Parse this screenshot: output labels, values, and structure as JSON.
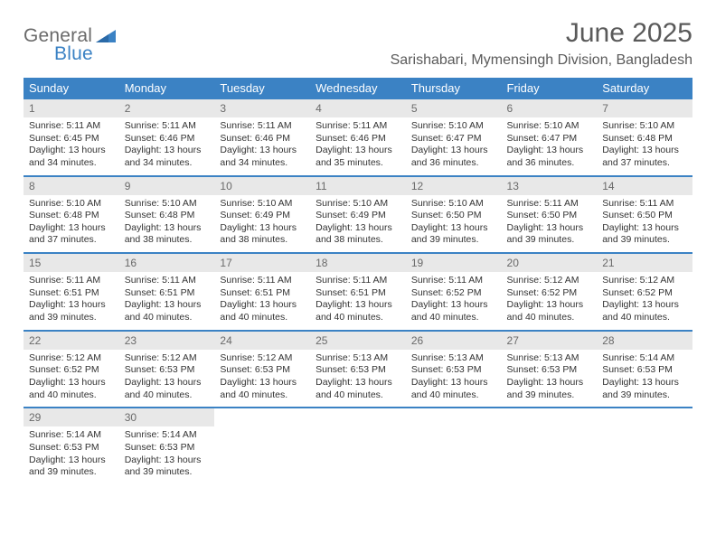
{
  "logo": {
    "word1": "General",
    "word2": "Blue"
  },
  "title": "June 2025",
  "location": "Sarishabari, Mymensingh Division, Bangladesh",
  "colors": {
    "header_bg": "#3b82c4",
    "daynum_bg": "#e8e8e8",
    "text": "#333333",
    "title_text": "#5a5a5a",
    "border": "#3b82c4",
    "background": "#ffffff"
  },
  "weekdays": [
    "Sunday",
    "Monday",
    "Tuesday",
    "Wednesday",
    "Thursday",
    "Friday",
    "Saturday"
  ],
  "weeks": [
    [
      {
        "n": "1",
        "sr": "Sunrise: 5:11 AM",
        "ss": "Sunset: 6:45 PM",
        "d1": "Daylight: 13 hours",
        "d2": "and 34 minutes."
      },
      {
        "n": "2",
        "sr": "Sunrise: 5:11 AM",
        "ss": "Sunset: 6:46 PM",
        "d1": "Daylight: 13 hours",
        "d2": "and 34 minutes."
      },
      {
        "n": "3",
        "sr": "Sunrise: 5:11 AM",
        "ss": "Sunset: 6:46 PM",
        "d1": "Daylight: 13 hours",
        "d2": "and 34 minutes."
      },
      {
        "n": "4",
        "sr": "Sunrise: 5:11 AM",
        "ss": "Sunset: 6:46 PM",
        "d1": "Daylight: 13 hours",
        "d2": "and 35 minutes."
      },
      {
        "n": "5",
        "sr": "Sunrise: 5:10 AM",
        "ss": "Sunset: 6:47 PM",
        "d1": "Daylight: 13 hours",
        "d2": "and 36 minutes."
      },
      {
        "n": "6",
        "sr": "Sunrise: 5:10 AM",
        "ss": "Sunset: 6:47 PM",
        "d1": "Daylight: 13 hours",
        "d2": "and 36 minutes."
      },
      {
        "n": "7",
        "sr": "Sunrise: 5:10 AM",
        "ss": "Sunset: 6:48 PM",
        "d1": "Daylight: 13 hours",
        "d2": "and 37 minutes."
      }
    ],
    [
      {
        "n": "8",
        "sr": "Sunrise: 5:10 AM",
        "ss": "Sunset: 6:48 PM",
        "d1": "Daylight: 13 hours",
        "d2": "and 37 minutes."
      },
      {
        "n": "9",
        "sr": "Sunrise: 5:10 AM",
        "ss": "Sunset: 6:48 PM",
        "d1": "Daylight: 13 hours",
        "d2": "and 38 minutes."
      },
      {
        "n": "10",
        "sr": "Sunrise: 5:10 AM",
        "ss": "Sunset: 6:49 PM",
        "d1": "Daylight: 13 hours",
        "d2": "and 38 minutes."
      },
      {
        "n": "11",
        "sr": "Sunrise: 5:10 AM",
        "ss": "Sunset: 6:49 PM",
        "d1": "Daylight: 13 hours",
        "d2": "and 38 minutes."
      },
      {
        "n": "12",
        "sr": "Sunrise: 5:10 AM",
        "ss": "Sunset: 6:50 PM",
        "d1": "Daylight: 13 hours",
        "d2": "and 39 minutes."
      },
      {
        "n": "13",
        "sr": "Sunrise: 5:11 AM",
        "ss": "Sunset: 6:50 PM",
        "d1": "Daylight: 13 hours",
        "d2": "and 39 minutes."
      },
      {
        "n": "14",
        "sr": "Sunrise: 5:11 AM",
        "ss": "Sunset: 6:50 PM",
        "d1": "Daylight: 13 hours",
        "d2": "and 39 minutes."
      }
    ],
    [
      {
        "n": "15",
        "sr": "Sunrise: 5:11 AM",
        "ss": "Sunset: 6:51 PM",
        "d1": "Daylight: 13 hours",
        "d2": "and 39 minutes."
      },
      {
        "n": "16",
        "sr": "Sunrise: 5:11 AM",
        "ss": "Sunset: 6:51 PM",
        "d1": "Daylight: 13 hours",
        "d2": "and 40 minutes."
      },
      {
        "n": "17",
        "sr": "Sunrise: 5:11 AM",
        "ss": "Sunset: 6:51 PM",
        "d1": "Daylight: 13 hours",
        "d2": "and 40 minutes."
      },
      {
        "n": "18",
        "sr": "Sunrise: 5:11 AM",
        "ss": "Sunset: 6:51 PM",
        "d1": "Daylight: 13 hours",
        "d2": "and 40 minutes."
      },
      {
        "n": "19",
        "sr": "Sunrise: 5:11 AM",
        "ss": "Sunset: 6:52 PM",
        "d1": "Daylight: 13 hours",
        "d2": "and 40 minutes."
      },
      {
        "n": "20",
        "sr": "Sunrise: 5:12 AM",
        "ss": "Sunset: 6:52 PM",
        "d1": "Daylight: 13 hours",
        "d2": "and 40 minutes."
      },
      {
        "n": "21",
        "sr": "Sunrise: 5:12 AM",
        "ss": "Sunset: 6:52 PM",
        "d1": "Daylight: 13 hours",
        "d2": "and 40 minutes."
      }
    ],
    [
      {
        "n": "22",
        "sr": "Sunrise: 5:12 AM",
        "ss": "Sunset: 6:52 PM",
        "d1": "Daylight: 13 hours",
        "d2": "and 40 minutes."
      },
      {
        "n": "23",
        "sr": "Sunrise: 5:12 AM",
        "ss": "Sunset: 6:53 PM",
        "d1": "Daylight: 13 hours",
        "d2": "and 40 minutes."
      },
      {
        "n": "24",
        "sr": "Sunrise: 5:12 AM",
        "ss": "Sunset: 6:53 PM",
        "d1": "Daylight: 13 hours",
        "d2": "and 40 minutes."
      },
      {
        "n": "25",
        "sr": "Sunrise: 5:13 AM",
        "ss": "Sunset: 6:53 PM",
        "d1": "Daylight: 13 hours",
        "d2": "and 40 minutes."
      },
      {
        "n": "26",
        "sr": "Sunrise: 5:13 AM",
        "ss": "Sunset: 6:53 PM",
        "d1": "Daylight: 13 hours",
        "d2": "and 40 minutes."
      },
      {
        "n": "27",
        "sr": "Sunrise: 5:13 AM",
        "ss": "Sunset: 6:53 PM",
        "d1": "Daylight: 13 hours",
        "d2": "and 39 minutes."
      },
      {
        "n": "28",
        "sr": "Sunrise: 5:14 AM",
        "ss": "Sunset: 6:53 PM",
        "d1": "Daylight: 13 hours",
        "d2": "and 39 minutes."
      }
    ],
    [
      {
        "n": "29",
        "sr": "Sunrise: 5:14 AM",
        "ss": "Sunset: 6:53 PM",
        "d1": "Daylight: 13 hours",
        "d2": "and 39 minutes."
      },
      {
        "n": "30",
        "sr": "Sunrise: 5:14 AM",
        "ss": "Sunset: 6:53 PM",
        "d1": "Daylight: 13 hours",
        "d2": "and 39 minutes."
      },
      null,
      null,
      null,
      null,
      null
    ]
  ]
}
